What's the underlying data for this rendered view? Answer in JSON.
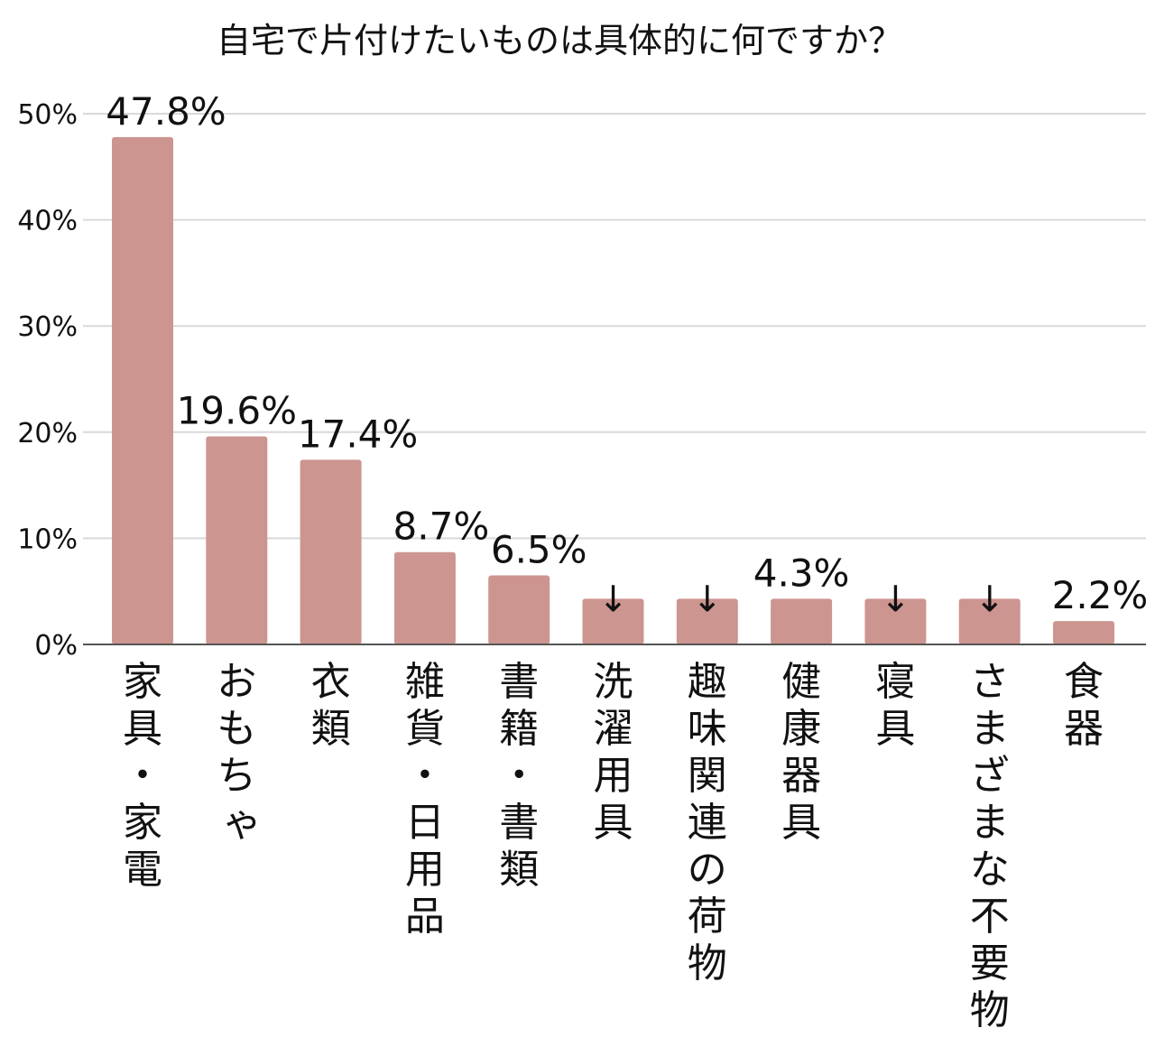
{
  "chart_data": {
    "type": "bar",
    "title": "自宅で片付けたいものは具体的に何ですか？",
    "xlabel": "",
    "ylabel": "",
    "ylim": [
      0,
      50
    ],
    "yticks": [
      0,
      10,
      20,
      30,
      40,
      50
    ],
    "ytick_labels": [
      "0%",
      "10%",
      "20%",
      "30%",
      "40%",
      "50%"
    ],
    "grid": true,
    "legend": "none",
    "bar_color": "#cd9590",
    "grid_color": "#d9d9d9",
    "categories": [
      "家具・家電",
      "おもちゃ",
      "衣類",
      "雑貨・日用品",
      "書籍・書類",
      "洗濯用具",
      "趣味関連の荷物",
      "健康器具",
      "寝具",
      "さまざまな不要物",
      "食器"
    ],
    "values": [
      47.8,
      19.6,
      17.4,
      8.7,
      6.5,
      4.3,
      4.3,
      4.3,
      4.3,
      4.3,
      2.2
    ],
    "data_labels": [
      "47.8%",
      "19.6%",
      "17.4%",
      "8.7%",
      "6.5%",
      "↓",
      "↓",
      "4.3%",
      "↓",
      "↓",
      "2.2%"
    ],
    "annotations": [
      "↓",
      "↓",
      "↓",
      "↓"
    ]
  }
}
